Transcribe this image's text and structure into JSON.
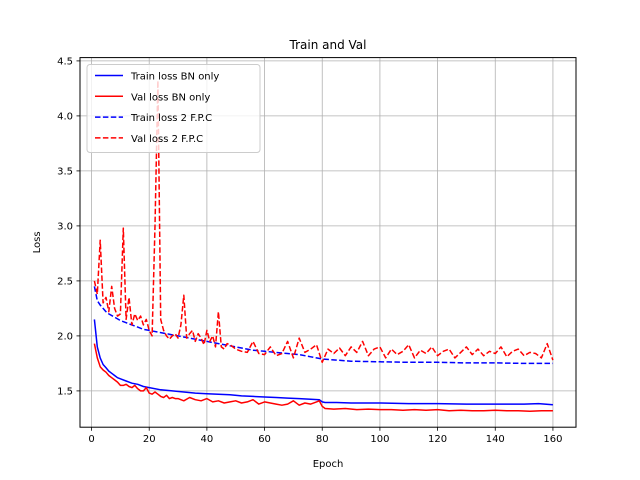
{
  "chart_data": {
    "type": "line",
    "title": "Train and Val",
    "xlabel": "Epoch",
    "ylabel": "Loss",
    "xlim": [
      -4,
      168
    ],
    "ylim": [
      1.17,
      4.53
    ],
    "xticks": [
      0,
      20,
      40,
      60,
      80,
      100,
      120,
      140,
      160
    ],
    "yticks": [
      1.5,
      2.0,
      2.5,
      3.0,
      3.5,
      4.0,
      4.5
    ],
    "grid": true,
    "legend_position": "top-left",
    "series": [
      {
        "name": "Train loss BN only",
        "color": "#0000ff",
        "style": "solid",
        "x": [
          1,
          2,
          3,
          4,
          5,
          6,
          7,
          8,
          9,
          10,
          12,
          14,
          16,
          18,
          20,
          24,
          28,
          32,
          36,
          40,
          44,
          48,
          52,
          56,
          60,
          64,
          68,
          72,
          76,
          79,
          80,
          81,
          85,
          90,
          100,
          110,
          120,
          130,
          140,
          150,
          155,
          160
        ],
        "values": [
          2.15,
          1.9,
          1.8,
          1.74,
          1.71,
          1.68,
          1.66,
          1.64,
          1.62,
          1.61,
          1.59,
          1.57,
          1.56,
          1.54,
          1.53,
          1.51,
          1.5,
          1.49,
          1.48,
          1.475,
          1.47,
          1.465,
          1.455,
          1.45,
          1.445,
          1.44,
          1.435,
          1.43,
          1.425,
          1.42,
          1.4,
          1.395,
          1.395,
          1.39,
          1.39,
          1.385,
          1.385,
          1.38,
          1.38,
          1.38,
          1.385,
          1.375
        ]
      },
      {
        "name": "Val loss BN only",
        "color": "#ff0000",
        "style": "solid",
        "x": [
          1,
          2,
          3,
          4,
          5,
          6,
          7,
          8,
          9,
          10,
          11,
          12,
          13,
          14,
          15,
          16,
          17,
          18,
          19,
          20,
          21,
          22,
          23,
          24,
          25,
          26,
          27,
          28,
          29,
          30,
          32,
          34,
          36,
          38,
          40,
          42,
          44,
          46,
          48,
          50,
          52,
          54,
          56,
          58,
          60,
          62,
          64,
          66,
          68,
          70,
          72,
          74,
          76,
          78,
          79,
          80,
          81,
          84,
          88,
          92,
          96,
          100,
          104,
          108,
          112,
          116,
          120,
          124,
          128,
          132,
          136,
          140,
          144,
          148,
          152,
          156,
          160
        ],
        "values": [
          1.93,
          1.8,
          1.72,
          1.69,
          1.67,
          1.64,
          1.62,
          1.6,
          1.58,
          1.55,
          1.55,
          1.56,
          1.54,
          1.53,
          1.55,
          1.52,
          1.5,
          1.5,
          1.53,
          1.48,
          1.47,
          1.49,
          1.47,
          1.45,
          1.44,
          1.46,
          1.43,
          1.44,
          1.43,
          1.43,
          1.41,
          1.44,
          1.42,
          1.41,
          1.43,
          1.4,
          1.41,
          1.39,
          1.4,
          1.41,
          1.39,
          1.4,
          1.42,
          1.38,
          1.4,
          1.39,
          1.38,
          1.37,
          1.38,
          1.41,
          1.37,
          1.39,
          1.38,
          1.4,
          1.41,
          1.36,
          1.34,
          1.335,
          1.34,
          1.33,
          1.335,
          1.33,
          1.33,
          1.325,
          1.33,
          1.325,
          1.33,
          1.32,
          1.325,
          1.32,
          1.32,
          1.325,
          1.32,
          1.32,
          1.315,
          1.32,
          1.32
        ]
      },
      {
        "name": "Train loss 2 F.P.C",
        "color": "#0000ff",
        "style": "dashed",
        "x": [
          1,
          2,
          3,
          4,
          5,
          6,
          8,
          10,
          12,
          14,
          16,
          18,
          20,
          24,
          28,
          32,
          36,
          40,
          44,
          48,
          52,
          56,
          60,
          64,
          68,
          72,
          76,
          80,
          85,
          90,
          100,
          110,
          120,
          130,
          140,
          150,
          160
        ],
        "values": [
          2.45,
          2.32,
          2.28,
          2.25,
          2.22,
          2.2,
          2.17,
          2.14,
          2.12,
          2.1,
          2.08,
          2.06,
          2.05,
          2.03,
          2.01,
          1.99,
          1.97,
          1.95,
          1.93,
          1.91,
          1.89,
          1.87,
          1.86,
          1.85,
          1.84,
          1.83,
          1.81,
          1.79,
          1.78,
          1.77,
          1.765,
          1.76,
          1.76,
          1.755,
          1.755,
          1.75,
          1.75
        ]
      },
      {
        "name": "Val loss 2 F.P.C",
        "color": "#ff0000",
        "style": "dashed",
        "x": [
          1,
          2,
          3,
          4,
          5,
          6,
          7,
          8,
          9,
          10,
          11,
          12,
          13,
          14,
          15,
          16,
          17,
          18,
          19,
          20,
          21,
          22,
          23,
          24,
          25,
          26,
          27,
          28,
          29,
          30,
          31,
          32,
          33,
          34,
          35,
          36,
          37,
          38,
          39,
          40,
          41,
          42,
          43,
          44,
          45,
          46,
          47,
          48,
          50,
          52,
          54,
          56,
          58,
          60,
          62,
          64,
          66,
          68,
          70,
          72,
          74,
          76,
          78,
          80,
          82,
          84,
          86,
          88,
          90,
          92,
          94,
          96,
          98,
          100,
          102,
          104,
          106,
          108,
          110,
          112,
          114,
          116,
          118,
          120,
          122,
          124,
          126,
          128,
          130,
          132,
          134,
          136,
          138,
          140,
          142,
          144,
          146,
          148,
          150,
          152,
          154,
          156,
          158,
          160
        ],
        "values": [
          2.5,
          2.38,
          2.87,
          2.3,
          2.35,
          2.22,
          2.45,
          2.25,
          2.18,
          2.2,
          2.98,
          2.15,
          2.35,
          2.1,
          2.2,
          2.14,
          2.18,
          2.1,
          2.15,
          2.05,
          2.0,
          3.0,
          4.32,
          2.15,
          2.05,
          2.0,
          1.97,
          2.0,
          2.02,
          1.98,
          2.1,
          2.37,
          1.98,
          2.02,
          2.05,
          1.95,
          2.02,
          1.98,
          1.92,
          2.05,
          1.95,
          2.0,
          1.9,
          2.22,
          1.9,
          1.88,
          1.93,
          1.92,
          1.88,
          1.86,
          1.85,
          1.95,
          1.84,
          1.83,
          1.9,
          1.82,
          1.84,
          1.95,
          1.8,
          1.98,
          1.85,
          1.88,
          1.92,
          1.76,
          1.88,
          1.84,
          1.89,
          1.82,
          1.9,
          1.85,
          1.95,
          1.82,
          1.88,
          1.9,
          1.8,
          1.88,
          1.83,
          1.86,
          1.92,
          1.8,
          1.87,
          1.84,
          1.9,
          1.82,
          1.86,
          1.88,
          1.8,
          1.85,
          1.9,
          1.83,
          1.88,
          1.82,
          1.86,
          1.84,
          1.9,
          1.81,
          1.86,
          1.88,
          1.82,
          1.85,
          1.84,
          1.8,
          1.93,
          1.78
        ]
      }
    ]
  }
}
